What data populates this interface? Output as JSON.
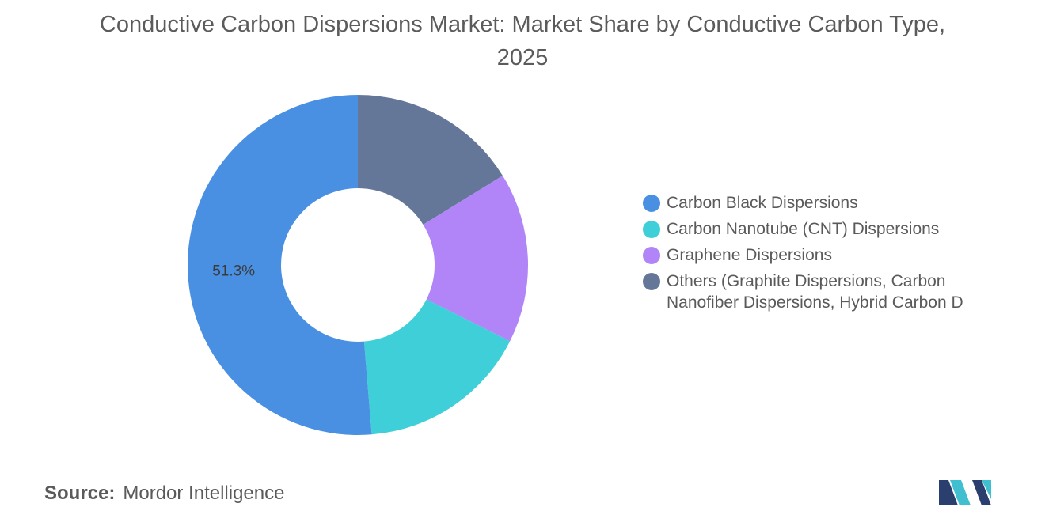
{
  "chart_data": {
    "type": "pie",
    "subtype": "donut",
    "title": "Conductive Carbon Dispersions Market: Market Share by Conductive Carbon Type, 2025",
    "categories": [
      "Carbon Black Dispersions",
      "Carbon Nanotube (CNT) Dispersions",
      "Graphene Dispersions",
      "Others (Graphite Dispersions, Carbon Nanofiber Dispersions, Hybrid Carbon D"
    ],
    "values": [
      51.3,
      16.3,
      16.2,
      16.2
    ],
    "colors": [
      "#4a90e2",
      "#3ecfd9",
      "#b185f7",
      "#657799"
    ],
    "data_labels": [
      "51.3%",
      "",
      "",
      ""
    ],
    "legend_position": "right"
  },
  "source": {
    "label": "Source:",
    "value": "Mordor Intelligence"
  },
  "logo": {
    "icon": "mordor-intelligence-logo-icon",
    "colors": [
      "#2b3f6e",
      "#3fbfcf"
    ]
  }
}
